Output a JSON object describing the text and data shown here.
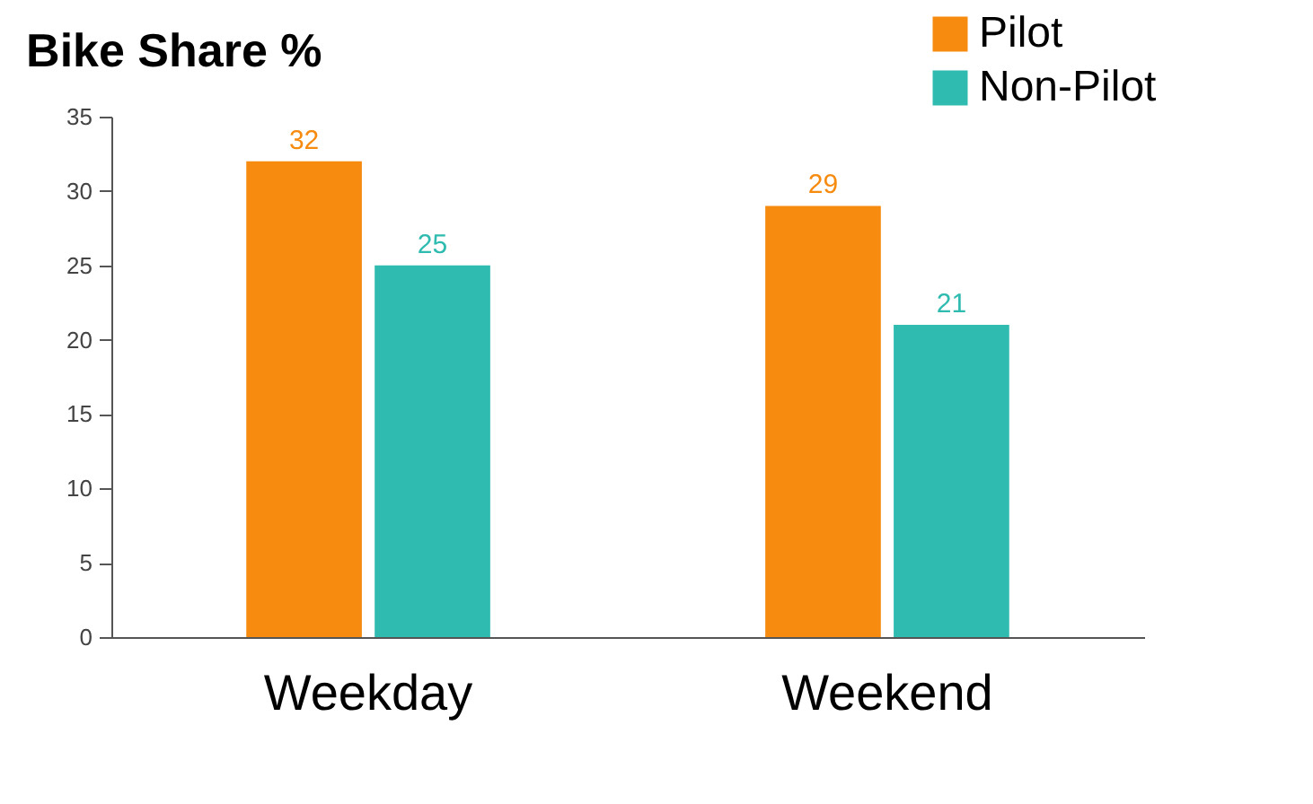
{
  "chart_data": {
    "type": "bar",
    "title": "Bike Share %",
    "categories": [
      "Weekday",
      "Weekend"
    ],
    "series": [
      {
        "name": "Pilot",
        "color": "#f68b0f",
        "values": [
          32,
          29
        ]
      },
      {
        "name": "Non-Pilot",
        "color": "#2fbbb0",
        "values": [
          25,
          21
        ]
      }
    ],
    "ylim": [
      0,
      35
    ],
    "yticks": [
      0,
      5,
      10,
      15,
      20,
      25,
      30,
      35
    ],
    "grid": false,
    "legend": "top right",
    "data_labels": true
  }
}
